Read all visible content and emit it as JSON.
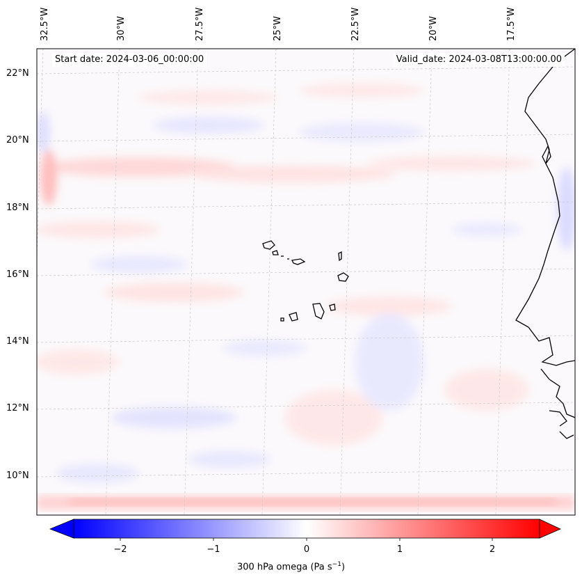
{
  "header": {
    "start_date": "Start date: 2024-03-06_00:00:00",
    "valid_date": "Valid_date: 2024-03-08T13:00:00.00"
  },
  "axes": {
    "lon_labels": [
      "32.5°W",
      "30°W",
      "27.5°W",
      "25°W",
      "22.5°W",
      "20°W",
      "17.5°W"
    ],
    "lat_labels": [
      "22°N",
      "20°N",
      "18°N",
      "16°N",
      "14°N",
      "12°N",
      "10°N"
    ]
  },
  "colorbar": {
    "ticks": [
      "−2",
      "−1",
      "0",
      "1",
      "2"
    ],
    "label": "300 hPa omega (Pa s",
    "label_sup": "−1",
    "label_end": ")",
    "min_color": "#0000ff",
    "mid_color": "#ffffff",
    "max_color": "#ff0000"
  },
  "map": {
    "region": "Cape Verde / West African coast",
    "field": "300 hPa omega"
  }
}
